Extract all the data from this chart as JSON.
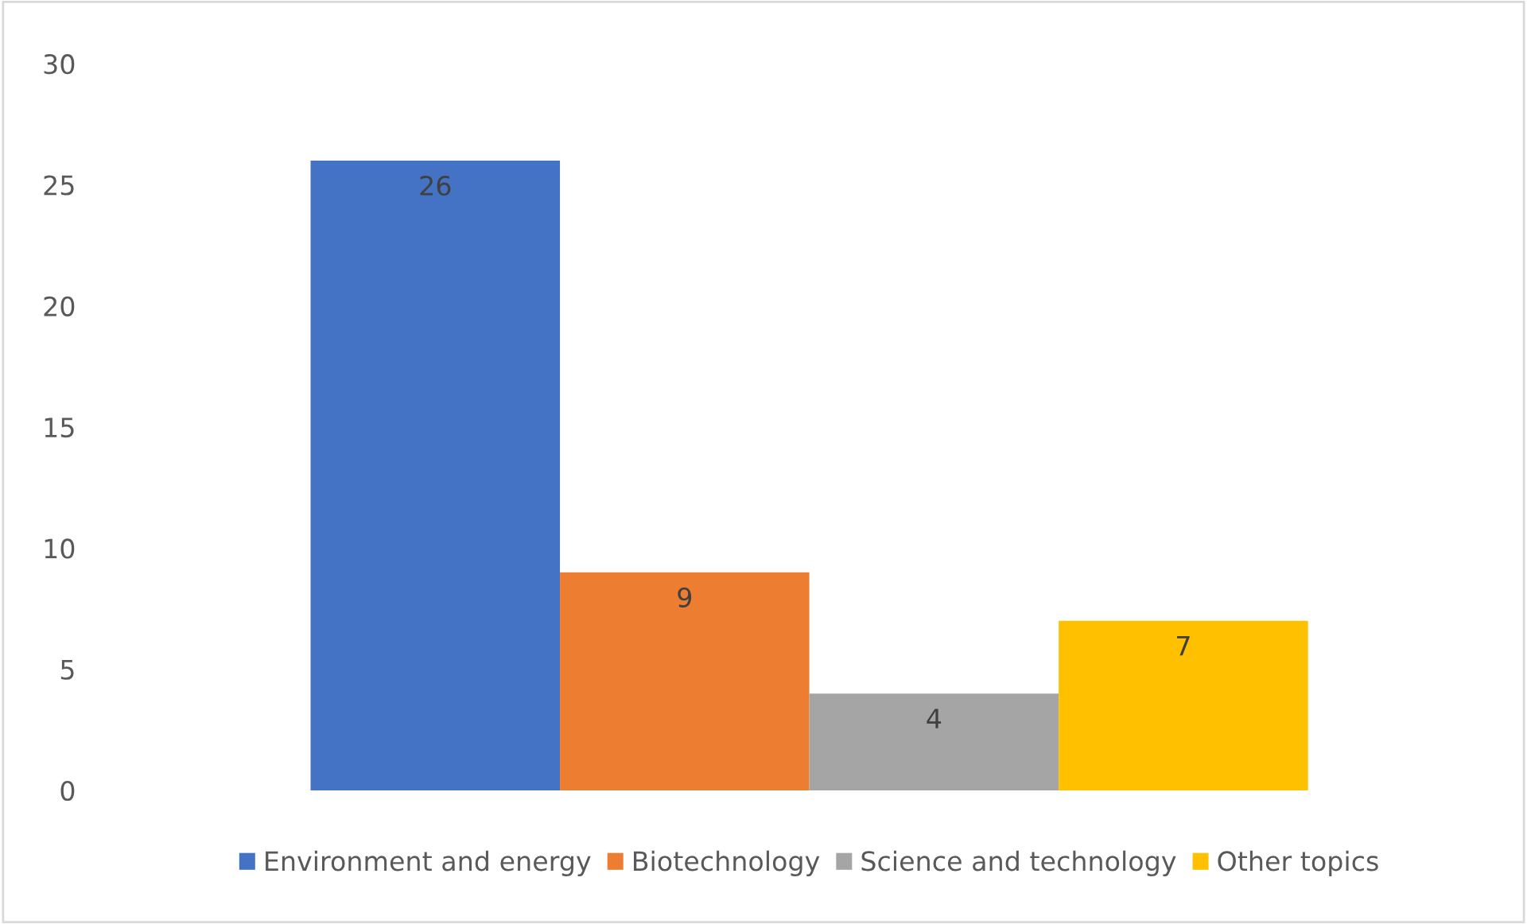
{
  "chart_data": {
    "type": "bar",
    "categories": [
      null
    ],
    "series": [
      {
        "name": "Environment and energy",
        "color": "#4472c4",
        "values": [
          26
        ]
      },
      {
        "name": "Biotechnology",
        "color": "#ed7d31",
        "values": [
          9
        ]
      },
      {
        "name": "Science and technology",
        "color": "#a5a5a5",
        "values": [
          4
        ]
      },
      {
        "name": "Other topics",
        "color": "#ffc000",
        "values": [
          7
        ]
      }
    ],
    "ylim": [
      0,
      30
    ],
    "yticks": [
      0,
      5,
      10,
      15,
      20,
      25,
      30
    ],
    "grid": false,
    "legend": "bottom",
    "data_labels": true
  }
}
